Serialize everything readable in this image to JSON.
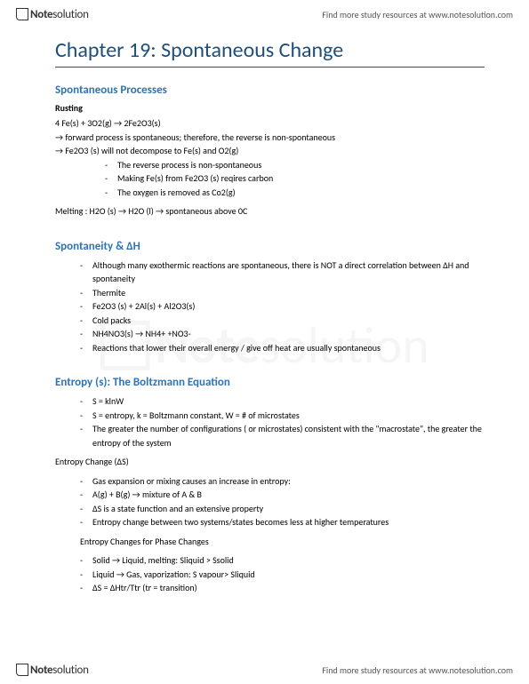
{
  "brand": {
    "bold": "Note",
    "rest": "solution"
  },
  "header_link": "Find more study resources at www.notesolution.com",
  "footer_link": "Find more study resources at www.notesolution.com",
  "title": "Chapter 19: Spontaneous Change",
  "sec1": {
    "heading": "Spontaneous Processes",
    "sub": "Rusting",
    "eq": "4 Fe(s) + 3O2(g) → 2Fe2O3(s)",
    "l1": "→ forward process is spontaneous; therefore, the reverse is non-spontaneous",
    "l2": "→ Fe2O3 (s) will not decompose to Fe(s) and O2(g)",
    "bullets": [
      "The reverse process is non-spontaneous",
      "Making Fe(s) from Fe2O3 (s) reqires carbon",
      "The oxygen is removed as Co2(g)"
    ],
    "melting": "Melting : H2O (s) → H2O (l) → spontaneous above 0C"
  },
  "sec2": {
    "heading": "Spontaneity & ΔH",
    "bullets": [
      "Although many exothermic reactions are spontaneous, there is NOT a direct correlation between ΔH and spontaneity",
      "Thermite",
      "Fe2O3 (s) + 2Al(s) + Al2O3(s)",
      "Cold packs",
      "NH4NO3(s) → NH4+ +NO3-",
      "Reactions that lower their overall energy / give off heat are usually spontaneous"
    ]
  },
  "sec3": {
    "heading": "Entropy (s): The Boltzmann Equation",
    "bullets1": [
      "S = klnW",
      "S = entropy, k = Boltzmann constant, W = # of microstates",
      "The greater the number of configurations ( or microstates) consistent with the \"macrostate\", the greater the entropy of the system"
    ],
    "sub1": "Entropy Change (ΔS)",
    "bullets2": [
      "Gas expansion or mixing causes an increase in entropy:",
      "A(g) + B(g) → mixture of A & B",
      "ΔS is a state function and an extensive property",
      "Entropy change between two systems/states becomes less at higher temperatures"
    ],
    "sub2": "Entropy Changes for Phase Changes",
    "bullets3": [
      "Solid → Liquid, melting: Sliquid > Ssolid",
      "Liquid → Gas, vaporization: S vapour> Sliquid",
      "ΔS = ΔHtr/Ttr (tr = transition)"
    ]
  },
  "colors": {
    "title": "#1f4e79",
    "heading": "#2e74b5",
    "text": "#000000",
    "bg": "#ffffff"
  }
}
